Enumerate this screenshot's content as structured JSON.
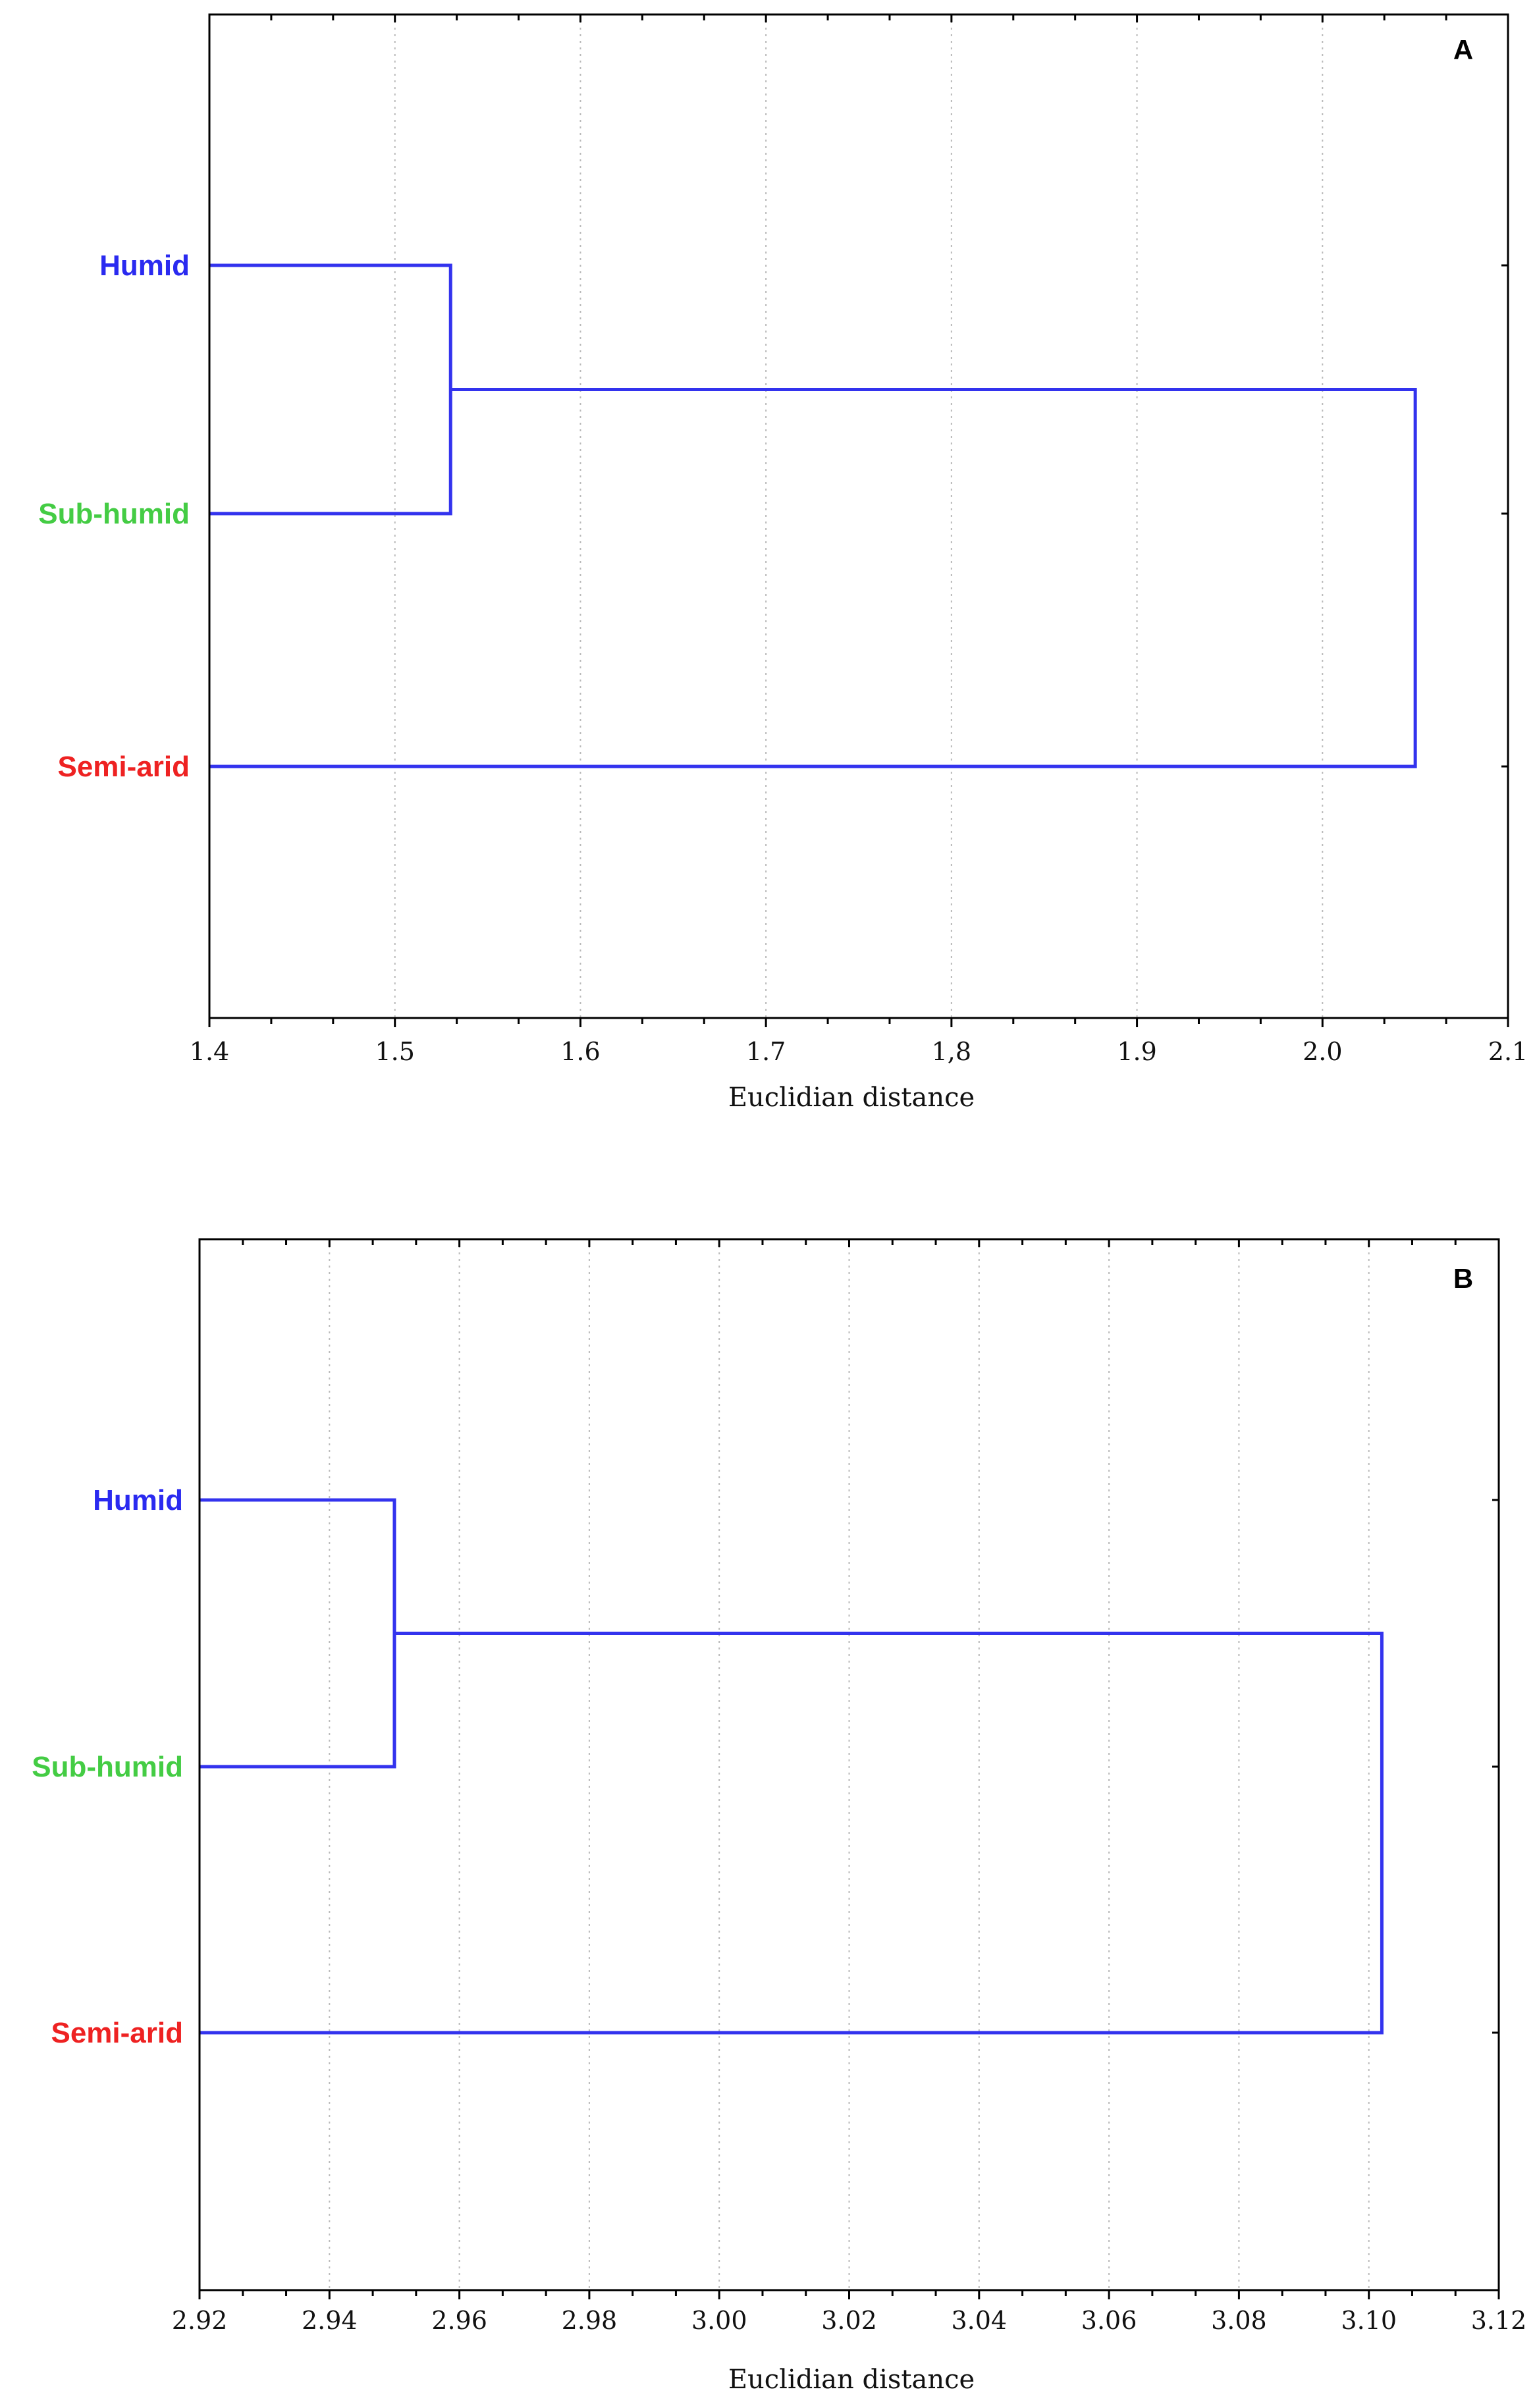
{
  "colors": {
    "link": "#3333ee",
    "humid": "#2a2af0",
    "sub_humid": "#44cc44",
    "semi_arid": "#ee2222",
    "grid": "#b9b9b9"
  },
  "chart_data": [
    {
      "type": "dendrogram",
      "panel": "A",
      "xlabel": "Euclidian distance",
      "xlim": [
        1.4,
        2.1
      ],
      "xticks": [
        "1.4",
        "1.5",
        "1.6",
        "1.7",
        "1,8",
        "1.9",
        "2.0",
        "2.1"
      ],
      "grid": true,
      "leaves": [
        {
          "name": "Humid",
          "color": "#2a2af0"
        },
        {
          "name": "Sub-humid",
          "color": "#44cc44"
        },
        {
          "name": "Semi-arid",
          "color": "#ee2222"
        }
      ],
      "merges": [
        {
          "children": [
            "Humid",
            "Sub-humid"
          ],
          "distance": 1.53
        },
        {
          "children": [
            "Humid+Sub-humid",
            "Semi-arid"
          ],
          "distance": 2.05
        }
      ]
    },
    {
      "type": "dendrogram",
      "panel": "B",
      "xlabel": "Euclidian distance",
      "xlim": [
        2.92,
        3.12
      ],
      "xticks": [
        "2.92",
        "2.94",
        "2.96",
        "2.98",
        "3.00",
        "3.02",
        "3.04",
        "3.06",
        "3.08",
        "3.10",
        "3.12"
      ],
      "grid": true,
      "leaves": [
        {
          "name": "Humid",
          "color": "#2a2af0"
        },
        {
          "name": "Sub-humid",
          "color": "#44cc44"
        },
        {
          "name": "Semi-arid",
          "color": "#ee2222"
        }
      ],
      "merges": [
        {
          "children": [
            "Humid",
            "Sub-humid"
          ],
          "distance": 2.95
        },
        {
          "children": [
            "Humid+Sub-humid",
            "Semi-arid"
          ],
          "distance": 3.102
        }
      ]
    }
  ]
}
